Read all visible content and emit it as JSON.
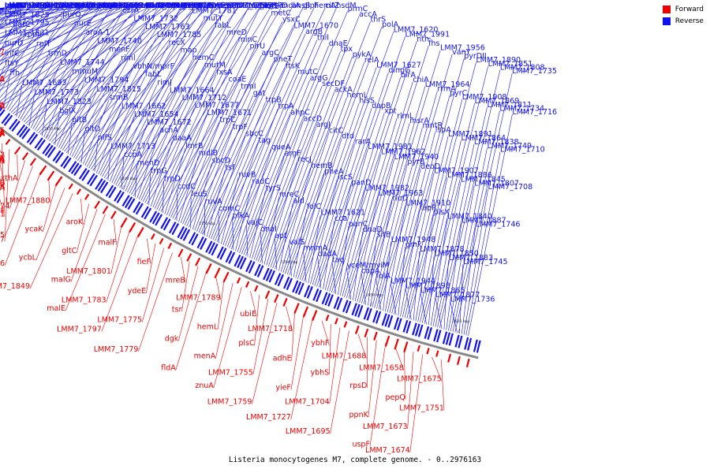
{
  "caption": "Listeria monocytogenes M7, complete genome. - 0..2976163",
  "legend": {
    "forward_label": "Forward",
    "reverse_label": "Reverse",
    "forward_color": "#ee0000",
    "reverse_color": "#1111ee"
  },
  "colors": {
    "backbone": "#888888",
    "forward": "#ee0000",
    "reverse": "#1111ee"
  },
  "ticks": [
    "1950 kbp",
    "1900 kbp",
    "1850 kbp",
    "1800 kbp",
    "1750 kbp",
    "1700 kbp",
    "1650 kbp",
    "1600 kbp"
  ],
  "reverse_genes": [
    "cpsG",
    "prc",
    "yieG",
    "carB",
    "rpoZ",
    "sdaB",
    "LMM7_1894",
    "purB",
    "LMM7_1837",
    "LMM7_1798",
    "msrB",
    "sitC",
    "pyrR",
    "pyrD",
    "priA",
    "recG",
    "LMM7_1892",
    "purS",
    "LMM7_1835",
    "LMM7_1796",
    "sitA",
    "pyrP",
    "pyrF",
    "pppL",
    "fabD",
    "rpsP",
    "purL",
    "ybbA",
    "LMM7_1795",
    "pyrE",
    "pknB",
    "rsgA",
    "fabH",
    "rimM",
    "purH",
    "LMM7_1831",
    "LMM7_1792",
    "LMM7_1706",
    "fmt",
    "rpe",
    "acpP",
    "rplS",
    "purD",
    "LMM7_1825",
    "LMM7_1791",
    "LMM7_1703",
    "dfp",
    "rnc",
    "smc",
    "infC",
    "gatC",
    "LMM7_1824",
    "LMM7_1790",
    "LMM7_1700",
    "sun",
    "tdcG",
    "ftsY",
    "rpmI",
    "ligA",
    "ybbP",
    "LMM7_1814",
    "LMM7_1776",
    "LMM7_1694",
    "ffh",
    "rplT",
    "purQ",
    "pcrA",
    "LMM7_1830",
    "LMM7_1804",
    "LMM7_1771",
    "LMM7_1693",
    "trmD",
    "purE",
    "purC",
    "gatB",
    "adeC",
    "LMM7_1809",
    "LMM7_1773",
    "LMM7_1744",
    "aroA-1",
    "pepT",
    "purK",
    "purN",
    "virR",
    "LMM7_1823",
    "mmuM",
    "LMM7_1740",
    "ezrA",
    "purF",
    "yegS",
    "yecS",
    "bglX",
    "LMM7_1794",
    "menF",
    "LMM7_1732",
    "LMM7_1678",
    "pcrB",
    "rsmF",
    "gltB",
    "LMM7_1815",
    "riml",
    "LMM7_1763",
    "LMM7_1705",
    "LMM7_1663",
    "virS",
    "gltD",
    "srmB",
    "vbhN/mprF",
    "LMM7_1785",
    "menB",
    "ldcA",
    "LMM7_1715",
    "nifS",
    "LMM7_1662",
    "fabL",
    "recX",
    "LMM7_1781",
    "menE",
    "LMM7_1757",
    "LMM7_1713",
    "LMM7_1654",
    "rimJ",
    "map",
    "mutY",
    "LMM7_1756",
    "trpE",
    "ccpA",
    "LMM7_1672",
    "LMM7_1664",
    "hemC",
    "fabL",
    "dut",
    "perR",
    "menD",
    "acnA",
    "LMM7_1712",
    "mutM",
    "mreD",
    "metE",
    "ytkD",
    "trpG",
    "daaA",
    "LMM7_1677",
    "fxsA",
    "minC",
    "metB",
    "mdlA",
    "trpD",
    "lmrB",
    "LMM7_1671",
    "coaE",
    "plrU",
    "metC",
    "ansB",
    "ccdC",
    "mdlB",
    "trpC",
    "trmI",
    "argC",
    "ysxC",
    "glpF",
    "leuS",
    "sbcD",
    "trpF",
    "gat",
    "pheT",
    "LMM7_1670",
    "hemA",
    "ruvA",
    "tsf",
    "sbcC",
    "trpB",
    "ftsK",
    "argB",
    "citZ",
    "comC",
    "ruvB",
    "tag",
    "trpA",
    "mutC",
    "thiI",
    "hsdM",
    "pfkA",
    "radC",
    "queA",
    "ahpC",
    "argG",
    "dnaE",
    "prmC",
    "vajC",
    "tyrS",
    "argF",
    "accD",
    "secDF",
    "tpx",
    "accA",
    "dnaI",
    "mreC",
    "recJ",
    "argJ",
    "ackA",
    "pykA",
    "thrS",
    "apt",
    "ald",
    "hemB",
    "citC",
    "hemL",
    "relA",
    "polA",
    "valS",
    "folC",
    "pheA",
    "dtd",
    "hisS",
    "LMM7_1627",
    "LMM7_1620",
    "mnmA",
    "LMM7_1621",
    "iscS",
    "rarA",
    "dapB",
    "dingG",
    "LMM7_1991",
    "dadA",
    "cca",
    "panD",
    "LMM7_1981",
    "xpt",
    "birA",
    "nth",
    "taq",
    "panC",
    "LMM7_1982",
    "LMM7_1962",
    "rlmL",
    "chiA",
    "fhs",
    "yceM/mviM",
    "dnaD",
    "LMM7_1963",
    "LMM7_1940",
    "msrA",
    "LMM7_1964",
    "LMM7_1956",
    "copA",
    "sitB",
    "rluD",
    "pyrB",
    "mntR",
    "rrmA",
    "vanY",
    "folA",
    "LMM7_1948",
    "LMM7_1910",
    "deoD",
    "lspA",
    "pyrC",
    "pyrDII",
    "LMM7_1944",
    "gmk",
    "fapR",
    "LMM7_1907",
    "LMM7_1891",
    "LMM7_1908",
    "LMM7_1890",
    "LMM7_1898",
    "LMM7_1878",
    "plsX",
    "LMM7_1886",
    "LMM7_1864",
    "LMM7_1869",
    "LMM7_1851",
    "LMM7_1865",
    "LMM7_1850",
    "LMM7_1840",
    "LMM7_1845",
    "LMM7_1838",
    "LMM7_1811",
    "LMM7_1808",
    "LMM7_1877",
    "LMM7_1883",
    "LMM7_1887",
    "LMM7_1807",
    "LMM7_1749",
    "LMM7_1734",
    "LMM7_1735",
    "LMM7_1736",
    "LMM7_1745",
    "LMM7_1746",
    "LMM7_1708",
    "LMM7_1710",
    "LMM7_1716"
  ],
  "forward_genes": [
    "LMM7_2007",
    "LMM7_2006",
    "maeA",
    "LMM7_2004",
    "pbpA",
    "rnhA",
    "ydjK",
    "recU",
    "cspD",
    "ygfA",
    "LMM7_1934",
    "ucpA",
    "LMM7_1935",
    "ppdK",
    "mdtK",
    "LMM7_1921",
    "LMM7_1922",
    "rpmB",
    "modF",
    "LMM7_1867",
    "xthA",
    "LMM7_1874",
    "LMM7_1875",
    "LMM7_1876",
    "LMM7_1880",
    "ycaK",
    "ycbL",
    "LMM7_1849",
    "aroK",
    "gltC",
    "malG",
    "malE",
    "malF",
    "LMM7_1801",
    "LMM7_1783",
    "LMM7_1797",
    "fieF",
    "ydeE",
    "LMM7_1775",
    "LMM7_1779",
    "mreB",
    "tsr",
    "dgk",
    "fldA",
    "LMM7_1789",
    "hemL",
    "menA",
    "znuA",
    "ubiE",
    "plsC",
    "LMM7_1755",
    "LMM7_1759",
    "LMM7_1718",
    "adhE",
    "yieF",
    "LMM7_1727",
    "ybhF",
    "ybhS",
    "LMM7_1704",
    "LMM7_1695",
    "LMM7_1688",
    "rpsD",
    "ppnK",
    "uspF",
    "LMM7_1658",
    "pepQ",
    "LMM7_1673",
    "LMM7_1674",
    "LMM7_1675",
    "LMM7_1751"
  ]
}
